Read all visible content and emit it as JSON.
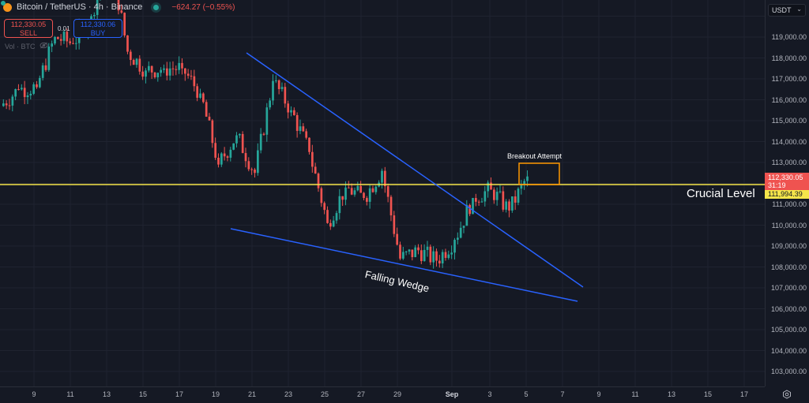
{
  "header": {
    "symbol": "Bitcoin / TetherUS · 4h · Binance",
    "change": "−624.27 (−0.55%)",
    "status_icon": "market-open-dot"
  },
  "trade": {
    "sell_price": "112,330.05",
    "sell_label": "SELL",
    "buy_price": "112,330.06",
    "buy_label": "BUY",
    "spread": "0.01"
  },
  "indicators": {
    "volume_label": "Vol · BTC",
    "visibility_icon": "eye-off-icon"
  },
  "currency_select": {
    "value": "USDT"
  },
  "price_axis": {
    "ticks": [
      "119,000.00",
      "118,000.00",
      "117,000.00",
      "116,000.00",
      "115,000.00",
      "114,000.00",
      "113,000.00",
      "111,000.00",
      "110,000.00",
      "109,000.00",
      "108,000.00",
      "107,000.00",
      "106,000.00",
      "105,000.00",
      "104,000.00",
      "103,000.00"
    ],
    "last_price": "112,330.05",
    "countdown": "31:19",
    "level_price": "111,994.39"
  },
  "time_axis": {
    "ticks": [
      "9",
      "11",
      "13",
      "15",
      "17",
      "19",
      "21",
      "23",
      "25",
      "27",
      "29",
      "Sep",
      "3",
      "5",
      "7",
      "9",
      "11",
      "13",
      "15",
      "17"
    ]
  },
  "annotations": {
    "crucial_level": "Crucial Level",
    "breakout": "Breakout Attempt",
    "pattern": "Falling Wedge"
  },
  "colors": {
    "background": "#151924",
    "up": "#26a69a",
    "down": "#ef5350",
    "trendline": "#2962ff",
    "level": "#f5e54a",
    "box": "#ff9800"
  },
  "chart_data": {
    "type": "candlestick",
    "title": "Bitcoin / TetherUS · 4h · Binance",
    "xlabel": "",
    "ylabel": "USDT",
    "ylim": [
      102500,
      120700
    ],
    "x_ticks": [
      "Aug 9",
      "Aug 11",
      "Aug 13",
      "Aug 15",
      "Aug 17",
      "Aug 19",
      "Aug 21",
      "Aug 23",
      "Aug 25",
      "Aug 27",
      "Aug 29",
      "Sep 1",
      "Sep 3",
      "Sep 5",
      "Sep 7",
      "Sep 9",
      "Sep 11",
      "Sep 13",
      "Sep 15",
      "Sep 17"
    ],
    "approx_closes_daily": [
      {
        "date": "Aug 8",
        "close": 116500
      },
      {
        "date": "Aug 9",
        "close": 116600
      },
      {
        "date": "Aug 10",
        "close": 119000
      },
      {
        "date": "Aug 11",
        "close": 118700
      },
      {
        "date": "Aug 12",
        "close": 120000
      },
      {
        "date": "Aug 13",
        "close": 123000
      },
      {
        "date": "Aug 14",
        "close": 118300
      },
      {
        "date": "Aug 15",
        "close": 117400
      },
      {
        "date": "Aug 16",
        "close": 117500
      },
      {
        "date": "Aug 17",
        "close": 117500
      },
      {
        "date": "Aug 18",
        "close": 116300
      },
      {
        "date": "Aug 19",
        "close": 112900
      },
      {
        "date": "Aug 20",
        "close": 114300
      },
      {
        "date": "Aug 21",
        "close": 112500
      },
      {
        "date": "Aug 22",
        "close": 116900
      },
      {
        "date": "Aug 23",
        "close": 115500
      },
      {
        "date": "Aug 24",
        "close": 113500
      },
      {
        "date": "Aug 25",
        "close": 110100
      },
      {
        "date": "Aug 26",
        "close": 111800
      },
      {
        "date": "Aug 27",
        "close": 111300
      },
      {
        "date": "Aug 28",
        "close": 112600
      },
      {
        "date": "Aug 29",
        "close": 108400
      },
      {
        "date": "Aug 30",
        "close": 108800
      },
      {
        "date": "Aug 31",
        "close": 108300
      },
      {
        "date": "Sep 1",
        "close": 109300
      },
      {
        "date": "Sep 2",
        "close": 111300
      },
      {
        "date": "Sep 3",
        "close": 111700
      },
      {
        "date": "Sep 4",
        "close": 110700
      },
      {
        "date": "Sep 5",
        "close": 112330
      }
    ],
    "annotations": [
      {
        "type": "hline",
        "label": "Crucial Level",
        "price": 111994.39,
        "color": "#f5e54a"
      },
      {
        "type": "trendline",
        "label": "Falling Wedge upper",
        "from": {
          "date": "Aug 20",
          "price": 118300
        },
        "to": {
          "date": "Sep 8",
          "price": 107000
        }
      },
      {
        "type": "trendline",
        "label": "Falling Wedge lower",
        "from": {
          "date": "Aug 20",
          "price": 109900
        },
        "to": {
          "date": "Sep 8",
          "price": 106400
        }
      },
      {
        "type": "rectangle",
        "label": "Breakout Attempt",
        "from": {
          "date": "Sep 4.8",
          "price": 113000
        },
        "to": {
          "date": "Sep 6.7",
          "price": 112000
        }
      },
      {
        "type": "text",
        "label": "Falling Wedge",
        "date": "Aug 30",
        "price": 108300
      }
    ],
    "last_price": 112330.05,
    "change": -624.27,
    "change_pct": -0.55,
    "grid": true
  }
}
